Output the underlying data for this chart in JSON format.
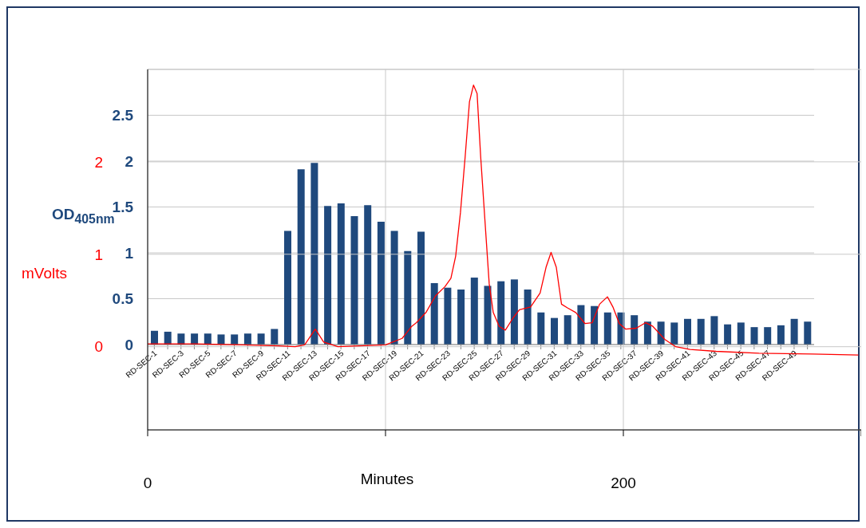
{
  "chart_data": [
    {
      "type": "bar",
      "ylabel": "OD$_{405nm}$",
      "categories": [
        "RD-SEC-1",
        null,
        "RD-SEC-3",
        null,
        "RD-SEC-5",
        null,
        "RD-SEC-7",
        null,
        "RD-SEC-9",
        null,
        "RD-SEC-11",
        null,
        "RD-SEC-13",
        null,
        "RD-SEC-15",
        null,
        "RD-SEC-17",
        null,
        "RD-SEC-19",
        null,
        "RD-SEC-21",
        null,
        "RD-SEC-23",
        null,
        "RD-SEC-25",
        null,
        "RD-SEC-27",
        null,
        "RD-SEC-29",
        null,
        "RD-SEC-31",
        null,
        "RD-SEC-33",
        null,
        "RD-SEC-35",
        null,
        "RD-SEC-37",
        null,
        "RD-SEC-39",
        null,
        "RD-SEC-41",
        null,
        "RD-SEC-43",
        null,
        "RD-SEC-45",
        null,
        "RD-SEC-47",
        null,
        "RD-SEC-49",
        null
      ],
      "color": "#1f497d",
      "values": [
        0.15,
        0.14,
        0.12,
        0.12,
        0.12,
        0.11,
        0.11,
        0.12,
        0.12,
        0.17,
        1.24,
        1.91,
        1.98,
        1.51,
        1.54,
        1.4,
        1.52,
        1.34,
        1.24,
        1.02,
        1.23,
        0.67,
        0.62,
        0.6,
        0.73,
        0.64,
        0.69,
        0.71,
        0.6,
        0.35,
        0.29,
        0.32,
        0.43,
        0.42,
        0.35,
        0.35,
        0.32,
        0.25,
        0.25,
        0.24,
        0.28,
        0.28,
        0.31,
        0.22,
        0.24,
        0.19,
        0.19,
        0.21,
        0.28,
        0.25
      ],
      "ylim": [
        0,
        3
      ],
      "yticks": [
        0,
        0.5,
        1,
        1.5,
        2,
        2.5,
        {
          "value": 3,
          "label": null
        }
      ],
      "grid": "y"
    },
    {
      "type": "line",
      "xlabel": "Minutes",
      "ylabel": "mVolts",
      "color": "#ff0000",
      "x": [
        0,
        20,
        40,
        55,
        62,
        66,
        70.5,
        74,
        80,
        100,
        107,
        111,
        113,
        117,
        121,
        125,
        127.5,
        129.5,
        131.5,
        133.5,
        135.3,
        137,
        138.5,
        140,
        142,
        143.6,
        145.3,
        147.8,
        150.4,
        153.6,
        156.3,
        161,
        165,
        167.5,
        169.6,
        171.8,
        174,
        176.5,
        180,
        183.9,
        186.9,
        190,
        193.3,
        195.6,
        198.3,
        201,
        205.4,
        209.4,
        212.4,
        217.4,
        222,
        228,
        239,
        257,
        279.5,
        298.8
      ],
      "values": [
        0.03,
        0.03,
        0.02,
        0.01,
        0,
        0.02,
        0.19,
        0.05,
        0,
        0.02,
        0.09,
        0.22,
        0.26,
        0.37,
        0.55,
        0.65,
        0.74,
        0.98,
        1.45,
        2.06,
        2.65,
        2.83,
        2.74,
        2.06,
        1.29,
        0.68,
        0.37,
        0.22,
        0.18,
        0.31,
        0.4,
        0.43,
        0.58,
        0.86,
        1.02,
        0.86,
        0.46,
        0.42,
        0.37,
        0.25,
        0.26,
        0.46,
        0.54,
        0.43,
        0.25,
        0.19,
        0.2,
        0.26,
        0.22,
        0.08,
        0,
        -0.03,
        -0.05,
        -0.07,
        -0.08,
        -0.09
      ],
      "ylim": [
        -0.9,
        3
      ],
      "yticks": [
        0,
        1,
        2
      ],
      "xlim": [
        0,
        300
      ],
      "xticks": [
        0,
        {
          "value": 100,
          "label": null
        },
        200,
        {
          "value": 300,
          "label": null
        }
      ],
      "grid": true,
      "marker": "none",
      "line_style": "solid"
    }
  ]
}
